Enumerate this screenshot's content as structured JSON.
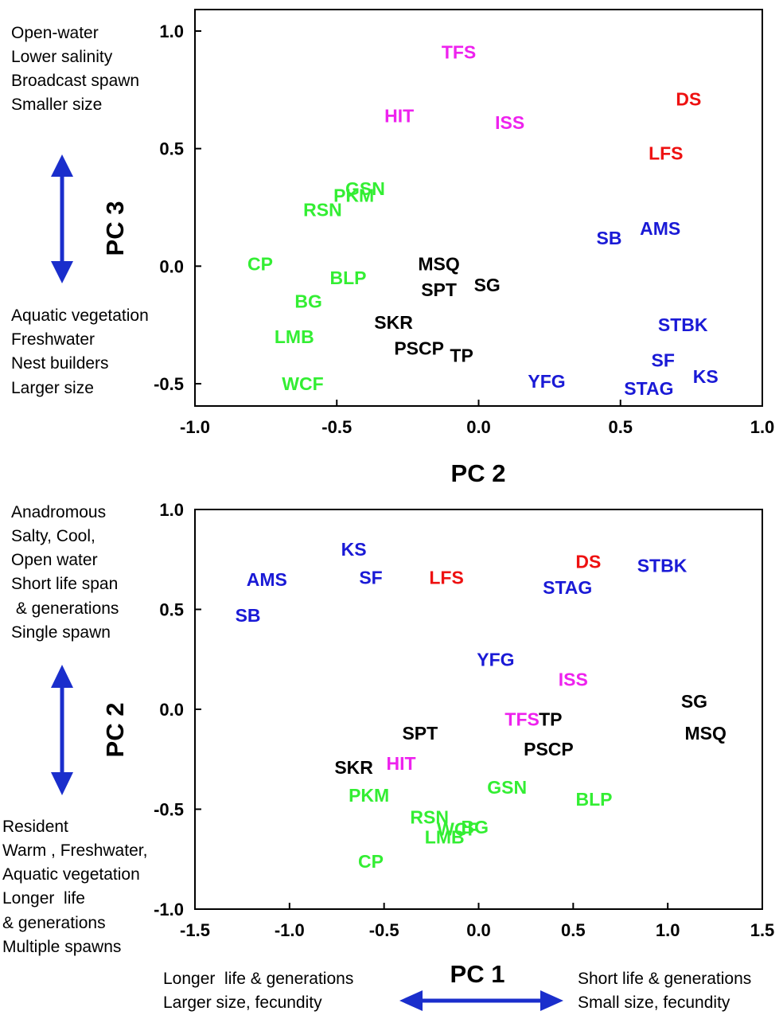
{
  "colors": {
    "green": "#33ee33",
    "black": "#000000",
    "blue": "#1a1ad6",
    "magenta": "#ee22ee",
    "red": "#ee1111",
    "arrow": "#1a2ecc"
  },
  "chart_data": [
    {
      "type": "scatter",
      "title": "",
      "xlabel": "PC 2",
      "ylabel": "PC 3",
      "xlim": [
        -1.0,
        1.0
      ],
      "ylim": [
        -0.6,
        1.1
      ],
      "xticks": [
        "-1.0",
        "-0.5",
        "0.0",
        "0.5",
        "1.0"
      ],
      "yticks": [
        "1.0",
        "0.5",
        "0.0",
        "-0.5"
      ],
      "xtick_values": [
        -1.0,
        -0.5,
        0.0,
        0.5,
        1.0
      ],
      "ytick_values": [
        1.0,
        0.5,
        0.0,
        -0.5
      ],
      "grid": false,
      "y_annotations": {
        "top": [
          "Open-water",
          "Lower salinity",
          "Broadcast spawn",
          "Smaller size"
        ],
        "bottom": [
          "Aquatic vegetation",
          "Freshwater",
          "Nest builders",
          "Larger size"
        ]
      },
      "points": [
        {
          "label": "TFS",
          "x": -0.07,
          "y": 0.91,
          "group": "magenta"
        },
        {
          "label": "DS",
          "x": 0.74,
          "y": 0.71,
          "group": "red"
        },
        {
          "label": "HIT",
          "x": -0.28,
          "y": 0.64,
          "group": "magenta"
        },
        {
          "label": "ISS",
          "x": 0.11,
          "y": 0.61,
          "group": "magenta"
        },
        {
          "label": "LFS",
          "x": 0.66,
          "y": 0.48,
          "group": "red"
        },
        {
          "label": "GSN",
          "x": -0.4,
          "y": 0.33,
          "group": "green"
        },
        {
          "label": "PKM",
          "x": -0.44,
          "y": 0.3,
          "group": "green"
        },
        {
          "label": "RSN",
          "x": -0.55,
          "y": 0.24,
          "group": "green"
        },
        {
          "label": "AMS",
          "x": 0.64,
          "y": 0.16,
          "group": "blue"
        },
        {
          "label": "SB",
          "x": 0.46,
          "y": 0.12,
          "group": "blue"
        },
        {
          "label": "CP",
          "x": -0.77,
          "y": 0.01,
          "group": "green"
        },
        {
          "label": "MSQ",
          "x": -0.14,
          "y": 0.01,
          "group": "black"
        },
        {
          "label": "BLP",
          "x": -0.46,
          "y": -0.05,
          "group": "green"
        },
        {
          "label": "SG",
          "x": 0.03,
          "y": -0.08,
          "group": "black"
        },
        {
          "label": "SPT",
          "x": -0.14,
          "y": -0.1,
          "group": "black"
        },
        {
          "label": "BG",
          "x": -0.6,
          "y": -0.15,
          "group": "green"
        },
        {
          "label": "SKR",
          "x": -0.3,
          "y": -0.24,
          "group": "black"
        },
        {
          "label": "STBK",
          "x": 0.72,
          "y": -0.25,
          "group": "blue"
        },
        {
          "label": "LMB",
          "x": -0.65,
          "y": -0.3,
          "group": "green"
        },
        {
          "label": "PSCP",
          "x": -0.21,
          "y": -0.35,
          "group": "black"
        },
        {
          "label": "TP",
          "x": -0.06,
          "y": -0.38,
          "group": "black"
        },
        {
          "label": "SF",
          "x": 0.65,
          "y": -0.4,
          "group": "blue"
        },
        {
          "label": "KS",
          "x": 0.8,
          "y": -0.47,
          "group": "blue"
        },
        {
          "label": "YFG",
          "x": 0.24,
          "y": -0.49,
          "group": "blue"
        },
        {
          "label": "WCF",
          "x": -0.62,
          "y": -0.5,
          "group": "green"
        },
        {
          "label": "STAG",
          "x": 0.6,
          "y": -0.52,
          "group": "blue"
        }
      ]
    },
    {
      "type": "scatter",
      "title": "",
      "xlabel": "PC 1",
      "ylabel": "PC 2",
      "xlim": [
        -1.5,
        1.5
      ],
      "ylim": [
        -1.0,
        1.0
      ],
      "xticks": [
        "-1.5",
        "-1.0",
        "-0.5",
        "0.0",
        "0.5",
        "1.0",
        "1.5"
      ],
      "yticks": [
        "1.0",
        "0.5",
        "0.0",
        "-0.5",
        "-1.0"
      ],
      "xtick_values": [
        -1.5,
        -1.0,
        -0.5,
        0.0,
        0.5,
        1.0,
        1.5
      ],
      "ytick_values": [
        1.0,
        0.5,
        0.0,
        -0.5,
        -1.0
      ],
      "grid": false,
      "y_annotations": {
        "top": [
          "Anadromous",
          "Salty, Cool,",
          "Open water",
          "Short life span",
          " & generations",
          "Single spawn"
        ],
        "bottom": [
          "Resident",
          "Warm , Freshwater,",
          "Aquatic vegetation",
          "Longer  life",
          "& generations",
          "Multiple spawns"
        ]
      },
      "x_annotations": {
        "left": [
          "Longer  life & generations",
          "Larger size, fecundity"
        ],
        "right": [
          "Short life & generations",
          "Small size, fecundity"
        ]
      },
      "points": [
        {
          "label": "KS",
          "x": -0.66,
          "y": 0.8,
          "group": "blue"
        },
        {
          "label": "STBK",
          "x": 0.97,
          "y": 0.72,
          "group": "blue"
        },
        {
          "label": "DS",
          "x": 0.58,
          "y": 0.74,
          "group": "red"
        },
        {
          "label": "AMS",
          "x": -1.12,
          "y": 0.65,
          "group": "blue"
        },
        {
          "label": "SF",
          "x": -0.57,
          "y": 0.66,
          "group": "blue"
        },
        {
          "label": "LFS",
          "x": -0.17,
          "y": 0.66,
          "group": "red"
        },
        {
          "label": "STAG",
          "x": 0.47,
          "y": 0.61,
          "group": "blue"
        },
        {
          "label": "SB",
          "x": -1.22,
          "y": 0.47,
          "group": "blue"
        },
        {
          "label": "YFG",
          "x": 0.09,
          "y": 0.25,
          "group": "blue"
        },
        {
          "label": "ISS",
          "x": 0.5,
          "y": 0.15,
          "group": "magenta"
        },
        {
          "label": "SG",
          "x": 1.14,
          "y": 0.04,
          "group": "black"
        },
        {
          "label": "TFS",
          "x": 0.23,
          "y": -0.05,
          "group": "magenta"
        },
        {
          "label": "TP",
          "x": 0.38,
          "y": -0.05,
          "group": "black"
        },
        {
          "label": "SPT",
          "x": -0.31,
          "y": -0.12,
          "group": "black"
        },
        {
          "label": "MSQ",
          "x": 1.2,
          "y": -0.12,
          "group": "black"
        },
        {
          "label": "PSCP",
          "x": 0.37,
          "y": -0.2,
          "group": "black"
        },
        {
          "label": "HIT",
          "x": -0.41,
          "y": -0.27,
          "group": "magenta"
        },
        {
          "label": "SKR",
          "x": -0.66,
          "y": -0.29,
          "group": "black"
        },
        {
          "label": "GSN",
          "x": 0.15,
          "y": -0.39,
          "group": "green"
        },
        {
          "label": "PKM",
          "x": -0.58,
          "y": -0.43,
          "group": "green"
        },
        {
          "label": "BLP",
          "x": 0.61,
          "y": -0.45,
          "group": "green"
        },
        {
          "label": "RSN",
          "x": -0.26,
          "y": -0.54,
          "group": "green"
        },
        {
          "label": "WCF",
          "x": -0.11,
          "y": -0.6,
          "group": "green"
        },
        {
          "label": "BG",
          "x": -0.02,
          "y": -0.59,
          "group": "green"
        },
        {
          "label": "LMB",
          "x": -0.18,
          "y": -0.64,
          "group": "green"
        },
        {
          "label": "CP",
          "x": -0.57,
          "y": -0.76,
          "group": "green"
        }
      ]
    }
  ]
}
